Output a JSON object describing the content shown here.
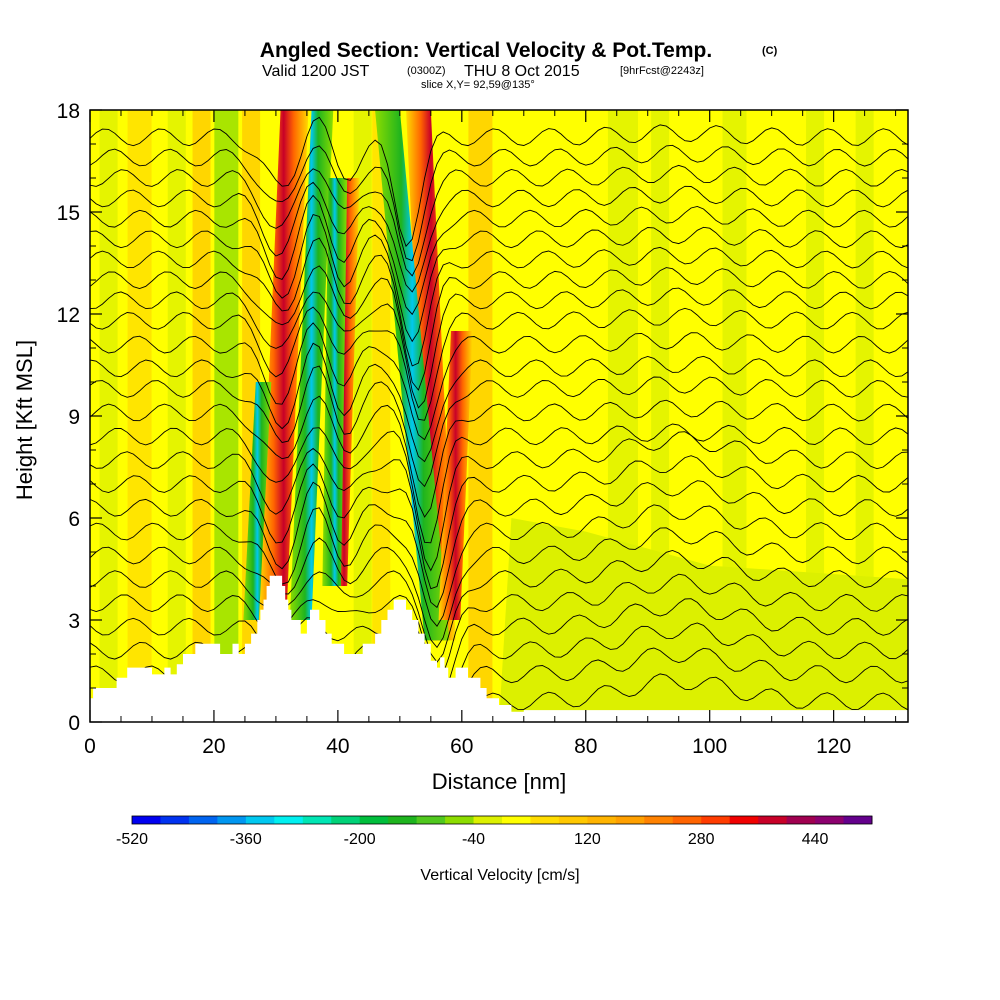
{
  "header": {
    "title": "Angled Section: Vertical Velocity & Pot.Temp.",
    "title_suffix": "(C)",
    "subtitle_a": "Valid 1200 JST",
    "subtitle_b": "(0300Z)",
    "subtitle_c": "THU 8 Oct 2015",
    "subtitle_d": "[9hrFcst@2243z]",
    "slice_text": "slice X,Y= 92,59@135°"
  },
  "chart_data": {
    "type": "heatmap",
    "title": "Angled Section: Vertical Velocity & Pot.Temp.",
    "xlabel": "Distance [nm]",
    "ylabel": "Height [Kft MSL]",
    "xlim": [
      0,
      132
    ],
    "ylim": [
      0,
      18
    ],
    "x_ticks": [
      "0",
      "20",
      "40",
      "60",
      "80",
      "100",
      "120"
    ],
    "y_ticks": [
      "0",
      "3",
      "6",
      "9",
      "12",
      "15",
      "18"
    ],
    "colorbar": {
      "label": "Vertical Velocity [cm/s]",
      "min": -520,
      "max": 520,
      "step": 40,
      "tick_labels": [
        "-520",
        "-360",
        "-200",
        "-40",
        "120",
        "280",
        "440"
      ],
      "colors": [
        "#0000f0",
        "#0032f0",
        "#0064f0",
        "#0096f0",
        "#00c8f0",
        "#00f0f0",
        "#00e6b4",
        "#00d278",
        "#00be3c",
        "#1eb41e",
        "#50c81e",
        "#8cdc00",
        "#dcf000",
        "#ffff00",
        "#ffdc00",
        "#ffc800",
        "#ffb400",
        "#ffa000",
        "#ff8200",
        "#ff6400",
        "#ff3c00",
        "#f00000",
        "#c80028",
        "#a00050",
        "#8c006e",
        "#64008c"
      ]
    },
    "terrain_profile": [
      [
        0,
        0.7
      ],
      [
        0.5,
        0.7
      ],
      [
        0.5,
        1.0
      ],
      [
        1,
        1.0
      ],
      [
        1,
        1.0
      ],
      [
        2,
        1.0
      ],
      [
        2,
        1.0
      ],
      [
        3,
        1.0
      ],
      [
        4.3,
        1.0
      ],
      [
        4.3,
        1.3
      ],
      [
        6,
        1.3
      ],
      [
        6,
        1.6
      ],
      [
        10,
        1.6
      ],
      [
        10,
        1.4
      ],
      [
        12,
        1.4
      ],
      [
        12,
        1.6
      ],
      [
        13,
        1.6
      ],
      [
        13,
        1.4
      ],
      [
        14,
        1.4
      ],
      [
        14,
        1.7
      ],
      [
        15,
        1.7
      ],
      [
        15,
        2.0
      ],
      [
        17,
        2.0
      ],
      [
        17,
        2.3
      ],
      [
        21,
        2.3
      ],
      [
        21,
        2.0
      ],
      [
        23,
        2.0
      ],
      [
        23,
        2.3
      ],
      [
        24,
        2.3
      ],
      [
        24,
        2.0
      ],
      [
        25,
        2.0
      ],
      [
        25,
        2.3
      ],
      [
        26,
        2.3
      ],
      [
        26,
        2.6
      ],
      [
        27,
        2.6
      ],
      [
        27,
        3.0
      ],
      [
        27.5,
        3.0
      ],
      [
        27.5,
        3.3
      ],
      [
        28,
        3.3
      ],
      [
        28,
        3.6
      ],
      [
        28.5,
        3.6
      ],
      [
        28.5,
        4.0
      ],
      [
        29,
        4.0
      ],
      [
        29,
        4.3
      ],
      [
        31,
        4.3
      ],
      [
        31,
        4.0
      ],
      [
        31.5,
        4.0
      ],
      [
        31.5,
        3.6
      ],
      [
        32,
        3.6
      ],
      [
        32,
        3.3
      ],
      [
        32.5,
        3.3
      ],
      [
        32.5,
        3.0
      ],
      [
        34,
        3.0
      ],
      [
        34,
        2.6
      ],
      [
        35,
        2.6
      ],
      [
        35,
        3.0
      ],
      [
        35.5,
        3.0
      ],
      [
        35.5,
        3.3
      ],
      [
        37,
        3.3
      ],
      [
        37,
        3.0
      ],
      [
        38,
        3.0
      ],
      [
        38,
        2.6
      ],
      [
        39,
        2.6
      ],
      [
        39,
        2.3
      ],
      [
        41,
        2.3
      ],
      [
        41,
        2.0
      ],
      [
        44,
        2.0
      ],
      [
        44,
        2.3
      ],
      [
        46,
        2.3
      ],
      [
        46,
        2.6
      ],
      [
        47,
        2.6
      ],
      [
        47,
        3.0
      ],
      [
        48,
        3.0
      ],
      [
        48,
        3.3
      ],
      [
        49,
        3.3
      ],
      [
        49,
        3.6
      ],
      [
        51,
        3.6
      ],
      [
        51,
        3.3
      ],
      [
        52,
        3.3
      ],
      [
        52,
        3.0
      ],
      [
        53,
        3.0
      ],
      [
        53,
        2.6
      ],
      [
        54,
        2.6
      ],
      [
        54,
        2.3
      ],
      [
        55,
        2.3
      ],
      [
        55,
        1.8
      ],
      [
        56,
        1.8
      ],
      [
        56,
        1.6
      ],
      [
        56.5,
        1.6
      ],
      [
        56.5,
        1.9
      ],
      [
        57.2,
        1.9
      ],
      [
        57.2,
        1.6
      ],
      [
        57.8,
        1.6
      ],
      [
        57.8,
        1.3
      ],
      [
        59,
        1.3
      ],
      [
        59,
        1.6
      ],
      [
        61,
        1.6
      ],
      [
        61,
        1.3
      ],
      [
        63,
        1.3
      ],
      [
        63,
        1.0
      ],
      [
        64,
        1.0
      ],
      [
        64,
        0.7
      ],
      [
        66,
        0.7
      ],
      [
        66,
        0.5
      ],
      [
        68,
        0.5
      ],
      [
        68,
        0.3
      ],
      [
        70,
        0.3
      ],
      [
        70,
        0.35
      ],
      [
        132,
        0.35
      ]
    ],
    "theta_contours": [
      {
        "level": "0",
        "y": 0.6
      },
      {
        "level": "2",
        "y": 1.4
      },
      {
        "level": "4",
        "y": 2.1
      },
      {
        "level": "6",
        "y": 2.8
      },
      {
        "level": "8",
        "y": 3.5
      },
      {
        "level": "10",
        "y": 4.2
      },
      {
        "level": "12",
        "y": 4.9
      },
      {
        "level": "14",
        "y": 5.6
      },
      {
        "level": "16",
        "y": 6.3
      },
      {
        "level": "18",
        "y": 7.0
      },
      {
        "level": "20",
        "y": 7.7
      },
      {
        "level": "22",
        "y": 8.4
      },
      {
        "level": "24",
        "y": 9.1
      },
      {
        "level": "26",
        "y": 9.8
      },
      {
        "level": "28",
        "y": 10.4
      },
      {
        "level": "30",
        "y": 11.1
      },
      {
        "level": "32",
        "y": 11.8
      },
      {
        "level": "34",
        "y": 12.4
      },
      {
        "level": "36",
        "y": 13.0
      },
      {
        "level": "38",
        "y": 13.6
      },
      {
        "level": "40",
        "y": 14.2
      },
      {
        "level": "42",
        "y": 14.8
      },
      {
        "level": "44",
        "y": 15.4
      },
      {
        "level": "46",
        "y": 16.0
      },
      {
        "level": "48",
        "y": 16.6
      },
      {
        "level": "50",
        "y": 17.2
      }
    ]
  }
}
